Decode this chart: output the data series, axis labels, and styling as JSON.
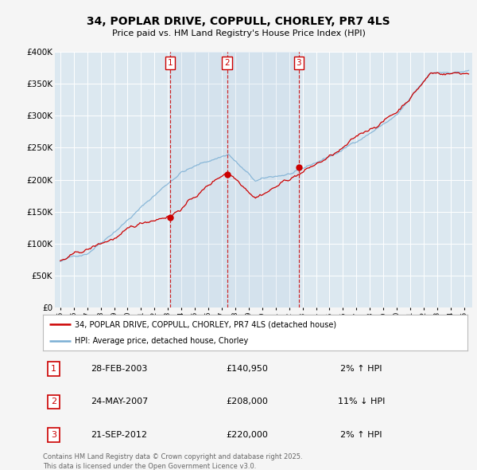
{
  "title": "34, POPLAR DRIVE, COPPULL, CHORLEY, PR7 4LS",
  "subtitle": "Price paid vs. HM Land Registry's House Price Index (HPI)",
  "legend_label_red": "34, POPLAR DRIVE, COPPULL, CHORLEY, PR7 4LS (detached house)",
  "legend_label_blue": "HPI: Average price, detached house, Chorley",
  "transactions": [
    {
      "num": 1,
      "date": "28-FEB-2003",
      "year": 2003.16,
      "price": 140950,
      "pct": "2%",
      "dir": "↑"
    },
    {
      "num": 2,
      "date": "24-MAY-2007",
      "year": 2007.39,
      "price": 208000,
      "pct": "11%",
      "dir": "↓"
    },
    {
      "num": 3,
      "date": "21-SEP-2012",
      "year": 2012.72,
      "price": 220000,
      "pct": "2%",
      "dir": "↑"
    }
  ],
  "ylim": [
    0,
    400000
  ],
  "yticks": [
    0,
    50000,
    100000,
    150000,
    200000,
    250000,
    300000,
    350000,
    400000
  ],
  "ytick_labels": [
    "£0",
    "£50K",
    "£100K",
    "£150K",
    "£200K",
    "£250K",
    "£300K",
    "£350K",
    "£400K"
  ],
  "xlim_start": 1994.6,
  "xlim_end": 2025.6,
  "red_color": "#cc0000",
  "blue_color": "#7bafd4",
  "fig_bg_color": "#f5f5f5",
  "plot_bg_color": "#dce8f0",
  "grid_color": "#ffffff",
  "footer": "Contains HM Land Registry data © Crown copyright and database right 2025.\nThis data is licensed under the Open Government Licence v3.0."
}
